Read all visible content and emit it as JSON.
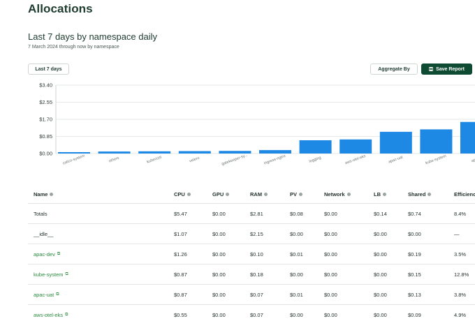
{
  "page_title": "Allocations",
  "report": {
    "title": "Last 7 days by namespace daily",
    "subtitle": "7 March 2024 through now by namespace"
  },
  "toolbar": {
    "range_label": "Last 7 days",
    "aggregate_label": "Aggregate By",
    "save_label": "Save Report",
    "save_icon": "save-icon"
  },
  "colors": {
    "accent": "#0f4a33",
    "bar": "#1e88e5",
    "link": "#2a8a3e"
  },
  "chart_data": {
    "type": "bar",
    "categories": [
      "calico-system",
      "others",
      "kubecost",
      "velero",
      "gatekeeper-sy...",
      "ingress-nginx",
      "logging",
      "aws-otel-eks",
      "apac-uat",
      "kube-system",
      "apa..."
    ],
    "values": [
      0.07,
      0.1,
      0.11,
      0.12,
      0.13,
      0.17,
      0.66,
      0.7,
      1.08,
      1.2,
      1.57
    ],
    "y_ticks": [
      "$3.40",
      "$2.55",
      "$1.70",
      "$0.85",
      "$0.00"
    ],
    "ylim": [
      0,
      3.4
    ],
    "grid": true
  },
  "table": {
    "headers": [
      "Name",
      "CPU",
      "GPU",
      "RAM",
      "PV",
      "Network",
      "LB",
      "Shared",
      "Efficienc"
    ],
    "rows": [
      {
        "name": "Totals",
        "link": false,
        "cpu": "$5.47",
        "gpu": "$0.00",
        "ram": "$2.81",
        "pv": "$0.08",
        "network": "$0.00",
        "lb": "$0.14",
        "shared": "$0.74",
        "efficiency": "8.4%"
      },
      {
        "name": "__idle__",
        "link": false,
        "cpu": "$1.07",
        "gpu": "$0.00",
        "ram": "$2.15",
        "pv": "$0.00",
        "network": "$0.00",
        "lb": "$0.00",
        "shared": "$0.00",
        "efficiency": "—"
      },
      {
        "name": "apac-dev",
        "link": true,
        "cpu": "$1.26",
        "gpu": "$0.00",
        "ram": "$0.10",
        "pv": "$0.01",
        "network": "$0.00",
        "lb": "$0.00",
        "shared": "$0.19",
        "efficiency": "3.5%"
      },
      {
        "name": "kube-system",
        "link": true,
        "cpu": "$0.87",
        "gpu": "$0.00",
        "ram": "$0.18",
        "pv": "$0.00",
        "network": "$0.00",
        "lb": "$0.00",
        "shared": "$0.15",
        "efficiency": "12.8%"
      },
      {
        "name": "apac-uat",
        "link": true,
        "cpu": "$0.87",
        "gpu": "$0.00",
        "ram": "$0.07",
        "pv": "$0.01",
        "network": "$0.00",
        "lb": "$0.00",
        "shared": "$0.13",
        "efficiency": "3.8%"
      },
      {
        "name": "aws-otel-eks",
        "link": true,
        "cpu": "$0.55",
        "gpu": "$0.00",
        "ram": "$0.07",
        "pv": "$0.00",
        "network": "$0.00",
        "lb": "$0.00",
        "shared": "$0.09",
        "efficiency": "4.9%"
      }
    ]
  }
}
